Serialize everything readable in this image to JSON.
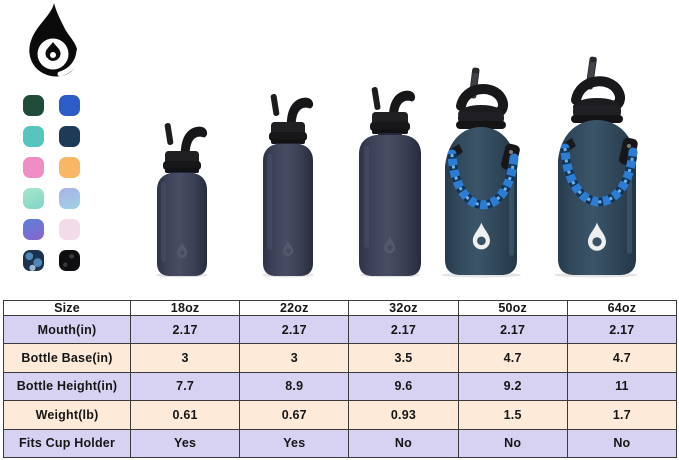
{
  "brand": {
    "logo": "flame-drop-logo"
  },
  "swatches": [
    {
      "name": "forest-green",
      "style": "solid",
      "colors": [
        "#1f4b39"
      ]
    },
    {
      "name": "royal-blue",
      "style": "solid",
      "colors": [
        "#2c5dc6"
      ]
    },
    {
      "name": "teal",
      "style": "solid",
      "colors": [
        "#57c5be"
      ]
    },
    {
      "name": "dark-navy",
      "style": "solid",
      "colors": [
        "#1d3a57"
      ]
    },
    {
      "name": "pink",
      "style": "solid",
      "colors": [
        "#ef8dc5"
      ]
    },
    {
      "name": "orange",
      "style": "solid",
      "colors": [
        "#f9b765"
      ]
    },
    {
      "name": "mint-gradient",
      "style": "gradient",
      "colors": [
        "#a9e6d0",
        "#7fd5c2"
      ]
    },
    {
      "name": "periwinkle-gradient",
      "style": "gradient",
      "colors": [
        "#abb1e7",
        "#9ed2e3"
      ]
    },
    {
      "name": "blue-purple-gradient",
      "style": "gradient",
      "colors": [
        "#5b80da",
        "#8a63ce"
      ]
    },
    {
      "name": "blush-marble",
      "style": "solid",
      "colors": [
        "#f3dcea"
      ]
    },
    {
      "name": "blue-camo",
      "style": "camo",
      "colors": [
        "#1c3350",
        "#4e86b5",
        "#9db9cf"
      ]
    },
    {
      "name": "black-marble",
      "style": "marble",
      "colors": [
        "#0e0e10",
        "#3a3a3a"
      ]
    }
  ],
  "bottles": [
    {
      "size": "18oz"
    },
    {
      "size": "22oz"
    },
    {
      "size": "32oz"
    },
    {
      "size": "50oz"
    },
    {
      "size": "64oz"
    }
  ],
  "table": {
    "columns": [
      "Size",
      "18oz",
      "22oz",
      "32oz",
      "50oz",
      "64oz"
    ],
    "rows": [
      {
        "label": "Mouth(in)",
        "values": [
          "2.17",
          "2.17",
          "2.17",
          "2.17",
          "2.17"
        ]
      },
      {
        "label": "Bottle Base(in)",
        "values": [
          "3",
          "3",
          "3.5",
          "4.7",
          "4.7"
        ]
      },
      {
        "label": "Bottle Height(in)",
        "values": [
          "7.7",
          "8.9",
          "9.6",
          "9.2",
          "11"
        ]
      },
      {
        "label": "Weight(lb)",
        "values": [
          "0.61",
          "0.67",
          "0.93",
          "1.5",
          "1.7"
        ]
      },
      {
        "label": "Fits Cup Holder",
        "values": [
          "Yes",
          "Yes",
          "No",
          "No",
          "No"
        ]
      }
    ],
    "colors": {
      "header_bg": "#ffffff",
      "row_alt1": "#d7d1f2",
      "row_alt2": "#fdead9",
      "border": "#3a3a3a",
      "text": "#161616"
    }
  }
}
